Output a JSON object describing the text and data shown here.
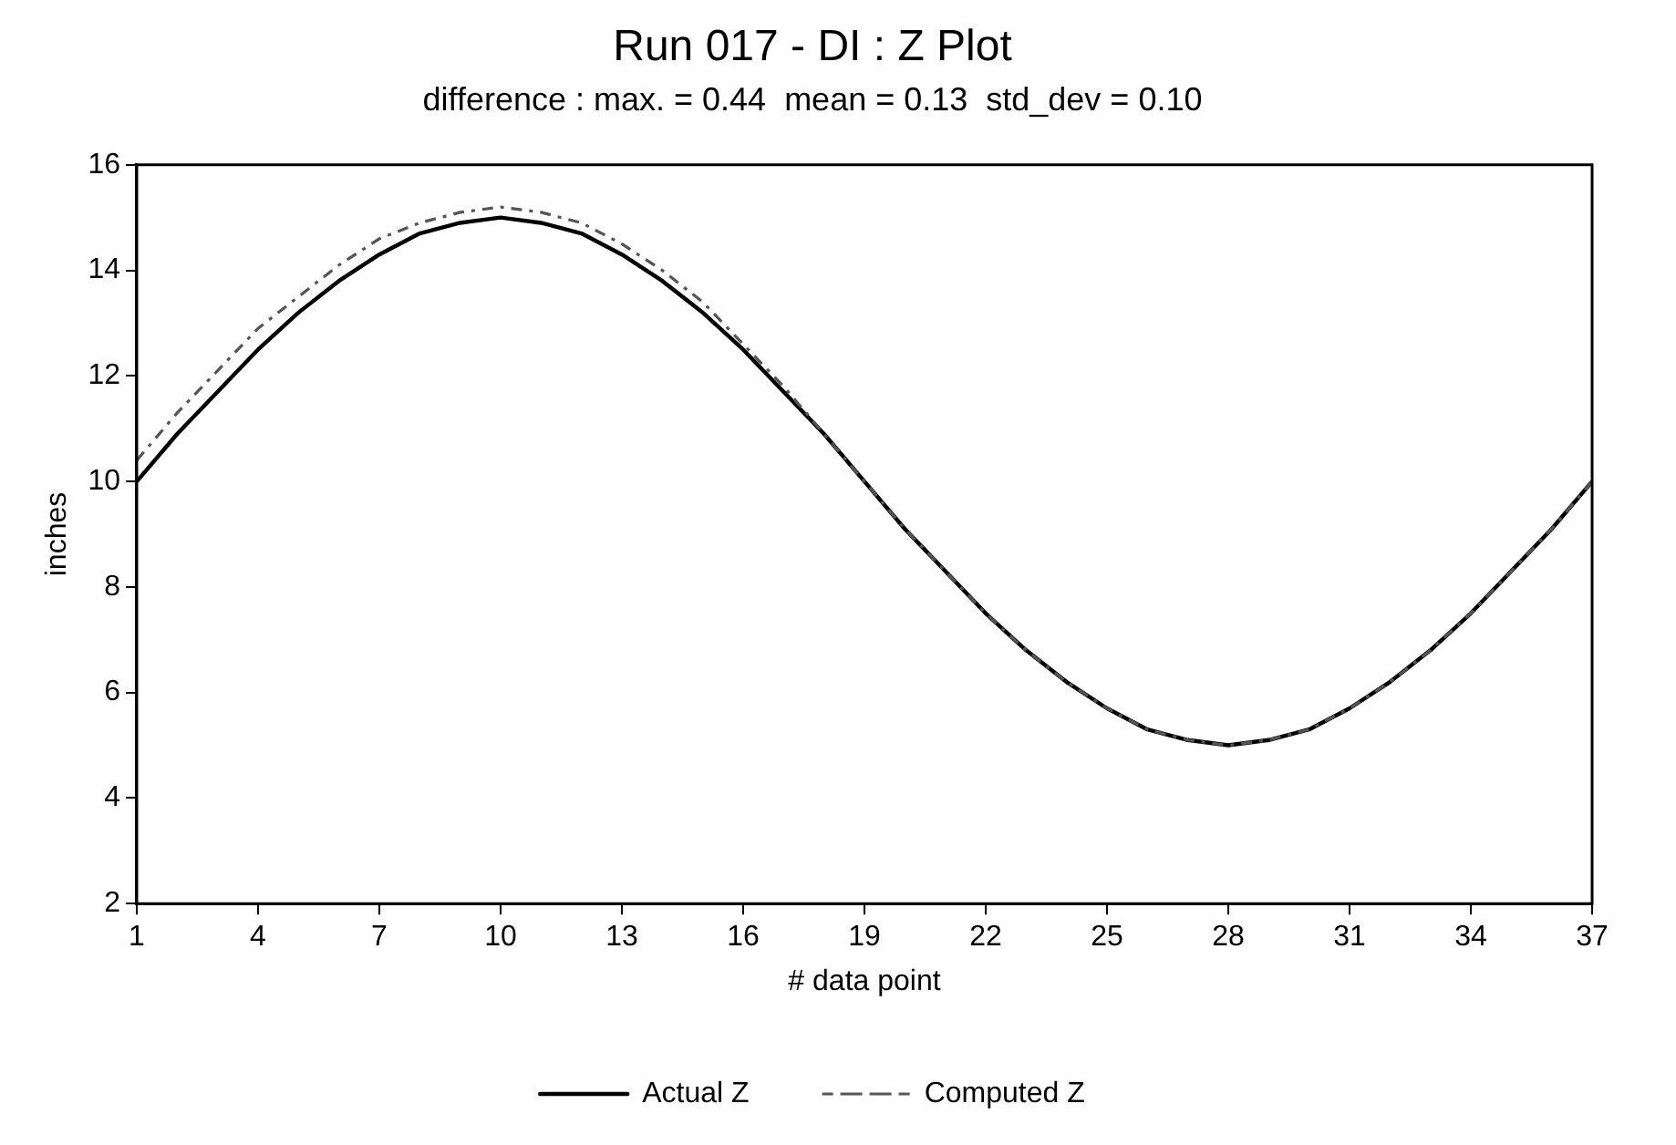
{
  "chart_data": {
    "type": "line",
    "title": "Run 017 - DI : Z Plot",
    "subtitle": "difference : max. = 0.44  mean = 0.13  std_dev = 0.10",
    "xlabel": "# data point",
    "ylabel": "inches",
    "x": [
      1,
      2,
      3,
      4,
      5,
      6,
      7,
      8,
      9,
      10,
      11,
      12,
      13,
      14,
      15,
      16,
      17,
      18,
      19,
      20,
      21,
      22,
      23,
      24,
      25,
      26,
      27,
      28,
      29,
      30,
      31,
      32,
      33,
      34,
      35,
      36,
      37
    ],
    "xlim": [
      1,
      37
    ],
    "xticks": [
      1,
      4,
      7,
      10,
      13,
      16,
      19,
      22,
      25,
      28,
      31,
      34,
      37
    ],
    "ylim": [
      2,
      16
    ],
    "yticks": [
      2,
      4,
      6,
      8,
      10,
      12,
      14,
      16
    ],
    "grid": false,
    "legend": "bottom",
    "marker": "none",
    "series": [
      {
        "name": "Actual Z",
        "color": "#000000",
        "line_style": "solid",
        "values": [
          10.0,
          10.9,
          11.7,
          12.5,
          13.2,
          13.8,
          14.3,
          14.7,
          14.9,
          15.0,
          14.9,
          14.7,
          14.3,
          13.8,
          13.2,
          12.5,
          11.7,
          10.9,
          10.0,
          9.1,
          8.3,
          7.5,
          6.8,
          6.2,
          5.7,
          5.3,
          5.1,
          5.0,
          5.1,
          5.3,
          5.7,
          6.2,
          6.8,
          7.5,
          8.3,
          9.1,
          10.0
        ]
      },
      {
        "name": "Computed Z",
        "color": "#555555",
        "line_style": "dashed",
        "values": [
          10.4,
          11.3,
          12.1,
          12.9,
          13.5,
          14.1,
          14.6,
          14.9,
          15.1,
          15.2,
          15.1,
          14.9,
          14.5,
          14.0,
          13.4,
          12.6,
          11.8,
          10.9,
          10.0,
          9.1,
          8.3,
          7.5,
          6.8,
          6.2,
          5.7,
          5.3,
          5.1,
          5.0,
          5.1,
          5.3,
          5.7,
          6.2,
          6.8,
          7.5,
          8.3,
          9.1,
          10.0
        ]
      }
    ]
  }
}
